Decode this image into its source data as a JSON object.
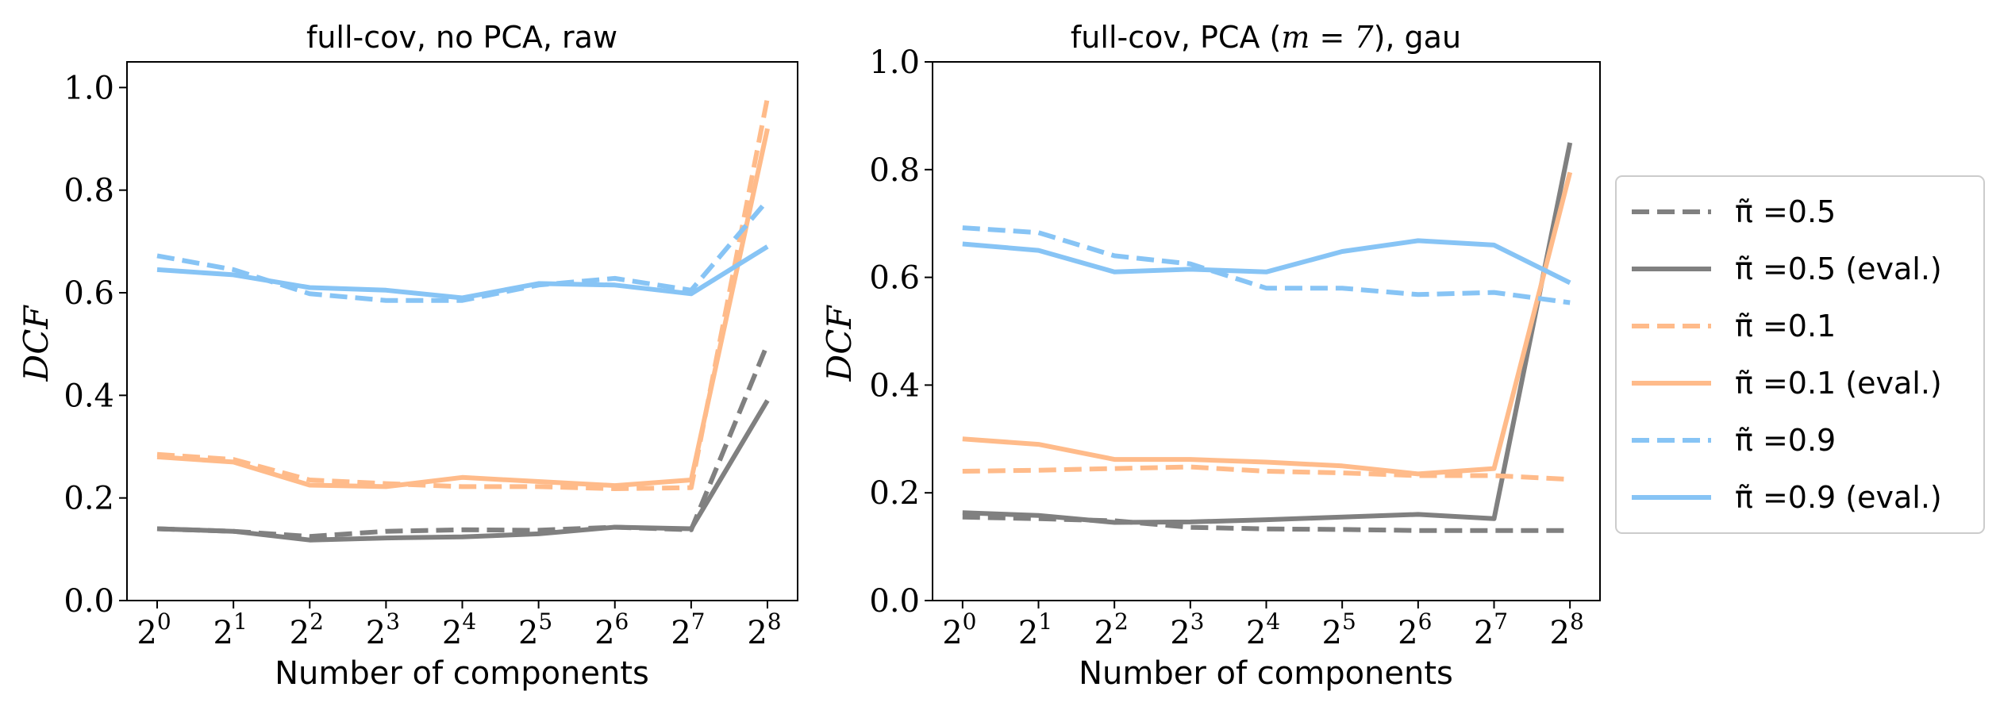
{
  "chart_data": [
    {
      "type": "line",
      "title": "full-cov, no PCA, raw",
      "xlabel": "Number of components",
      "ylabel": "DCF",
      "x_tick_base": "2",
      "x_tick_exponents": [
        "0",
        "1",
        "2",
        "3",
        "4",
        "5",
        "6",
        "7",
        "8"
      ],
      "x": [
        1,
        2,
        4,
        8,
        16,
        32,
        64,
        128,
        256
      ],
      "xscale": "log2",
      "ylim": [
        0,
        1.05
      ],
      "yticks": [
        "0.0",
        "0.2",
        "0.4",
        "0.6",
        "0.8",
        "1.0"
      ],
      "series": [
        {
          "name": "π̃ =0.5",
          "color": "#808080",
          "style": "dashed",
          "values": [
            0.14,
            0.135,
            0.125,
            0.135,
            0.138,
            0.137,
            0.143,
            0.138,
            0.5
          ]
        },
        {
          "name": "π̃ =0.5 (eval.)",
          "color": "#808080",
          "style": "solid",
          "values": [
            0.14,
            0.135,
            0.118,
            0.122,
            0.124,
            0.13,
            0.143,
            0.14,
            0.39
          ]
        },
        {
          "name": "π̃ =0.1",
          "color": "#ffbb8a",
          "style": "dashed",
          "values": [
            0.285,
            0.275,
            0.235,
            0.228,
            0.222,
            0.222,
            0.218,
            0.22,
            0.98
          ]
        },
        {
          "name": "π̃ =0.1 (eval.)",
          "color": "#ffbb8a",
          "style": "solid",
          "values": [
            0.28,
            0.27,
            0.225,
            0.222,
            0.24,
            0.232,
            0.224,
            0.235,
            0.92
          ]
        },
        {
          "name": "π̃ =0.9",
          "color": "#87c4f5",
          "style": "dashed",
          "values": [
            0.672,
            0.645,
            0.598,
            0.585,
            0.585,
            0.615,
            0.628,
            0.605,
            0.78
          ]
        },
        {
          "name": "π̃ =0.9 (eval.)",
          "color": "#87c4f5",
          "style": "solid",
          "values": [
            0.645,
            0.635,
            0.61,
            0.605,
            0.59,
            0.618,
            0.615,
            0.598,
            0.69
          ]
        }
      ]
    },
    {
      "type": "line",
      "title_prefix": "full-cov, PCA (",
      "title_math": "m = 7",
      "title_suffix": "), gau",
      "xlabel": "Number of components",
      "ylabel": "DCF",
      "x_tick_base": "2",
      "x_tick_exponents": [
        "0",
        "1",
        "2",
        "3",
        "4",
        "5",
        "6",
        "7",
        "8"
      ],
      "x": [
        1,
        2,
        4,
        8,
        16,
        32,
        64,
        128,
        256
      ],
      "xscale": "log2",
      "ylim": [
        0,
        1.0
      ],
      "yticks": [
        "0.0",
        "0.2",
        "0.4",
        "0.6",
        "0.8",
        "1.0"
      ],
      "series": [
        {
          "name": "π̃ =0.5",
          "color": "#808080",
          "style": "dashed",
          "values": [
            0.155,
            0.152,
            0.148,
            0.136,
            0.133,
            0.132,
            0.13,
            0.13,
            0.13
          ]
        },
        {
          "name": "π̃ =0.5 (eval.)",
          "color": "#808080",
          "style": "solid",
          "values": [
            0.163,
            0.158,
            0.145,
            0.146,
            0.15,
            0.155,
            0.16,
            0.152,
            0.85
          ]
        },
        {
          "name": "π̃ =0.1",
          "color": "#ffbb8a",
          "style": "dashed",
          "values": [
            0.24,
            0.242,
            0.245,
            0.248,
            0.24,
            0.237,
            0.232,
            0.232,
            0.225
          ]
        },
        {
          "name": "π̃ =0.1 (eval.)",
          "color": "#ffbb8a",
          "style": "solid",
          "values": [
            0.3,
            0.29,
            0.262,
            0.262,
            0.257,
            0.25,
            0.235,
            0.245,
            0.795
          ]
        },
        {
          "name": "π̃ =0.9",
          "color": "#87c4f5",
          "style": "dashed",
          "values": [
            0.692,
            0.683,
            0.64,
            0.625,
            0.58,
            0.58,
            0.568,
            0.572,
            0.553
          ]
        },
        {
          "name": "π̃ =0.9 (eval.)",
          "color": "#87c4f5",
          "style": "solid",
          "values": [
            0.662,
            0.65,
            0.61,
            0.615,
            0.61,
            0.648,
            0.668,
            0.66,
            0.59
          ]
        }
      ]
    }
  ],
  "legend": {
    "placement": "right",
    "items": [
      {
        "label": "π̃ =0.5",
        "color": "#808080",
        "style": "dashed"
      },
      {
        "label": "π̃ =0.5 (eval.)",
        "color": "#808080",
        "style": "solid"
      },
      {
        "label": "π̃ =0.1",
        "color": "#ffbb8a",
        "style": "dashed"
      },
      {
        "label": "π̃ =0.1 (eval.)",
        "color": "#ffbb8a",
        "style": "solid"
      },
      {
        "label": "π̃ =0.9",
        "color": "#87c4f5",
        "style": "dashed"
      },
      {
        "label": "π̃ =0.9 (eval.)",
        "color": "#87c4f5",
        "style": "solid"
      }
    ]
  }
}
